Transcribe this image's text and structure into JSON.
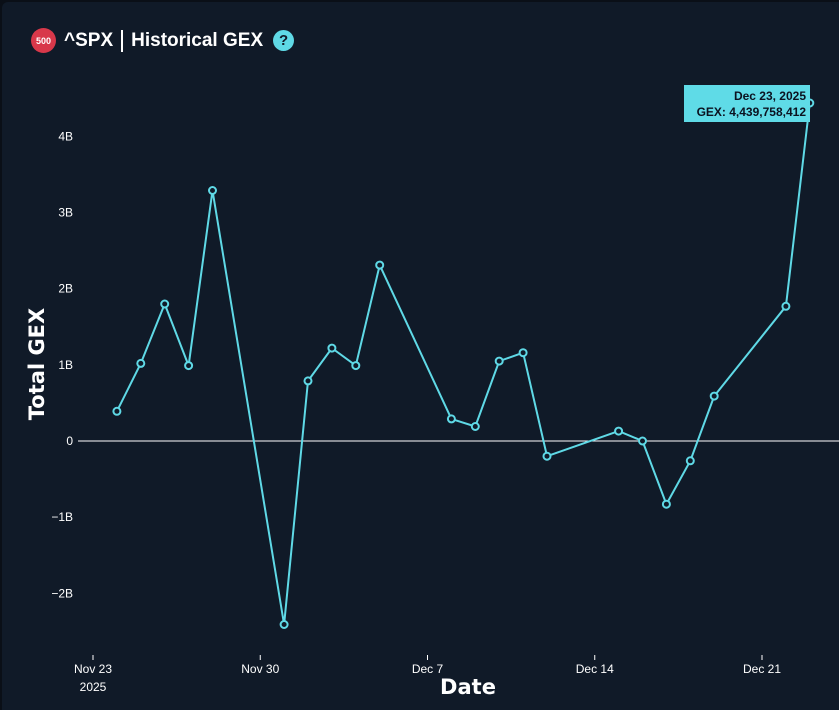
{
  "header": {
    "badge": "500",
    "ticker": "^SPX",
    "title": "Historical GEX",
    "help_icon": "question-icon"
  },
  "tooltip": {
    "date": "Dec 23, 2025",
    "value": "GEX: 4,439,758,412"
  },
  "colors": {
    "background": "#101a28",
    "line": "#5fd9e6",
    "zero_line": "#ffffff",
    "badge": "#d8384a"
  },
  "chart_data": {
    "type": "line",
    "title": "^SPX | Historical GEX",
    "xlabel": "Date",
    "ylabel": "Total GEX",
    "ylim": [
      -2.6,
      4.7
    ],
    "xlim": [
      "2025-11-23",
      "2025-12-24"
    ],
    "x_ticks": [
      {
        "date": "2025-11-23",
        "label": "Nov 23",
        "sublabel": "2025"
      },
      {
        "date": "2025-11-30",
        "label": "Nov 30"
      },
      {
        "date": "2025-12-07",
        "label": "Dec 7"
      },
      {
        "date": "2025-12-14",
        "label": "Dec 14"
      },
      {
        "date": "2025-12-21",
        "label": "Dec 21"
      }
    ],
    "y_ticks": [
      {
        "value": 4,
        "label": "4B"
      },
      {
        "value": 3,
        "label": "3B"
      },
      {
        "value": 2,
        "label": "2B"
      },
      {
        "value": 1,
        "label": "1B"
      },
      {
        "value": 0,
        "label": "0"
      },
      {
        "value": -1,
        "label": "−1B"
      },
      {
        "value": -2,
        "label": "−2B"
      }
    ],
    "grid": false,
    "series": [
      {
        "x": [
          "2025-11-24",
          "2025-11-25",
          "2025-11-26",
          "2025-11-27",
          "2025-11-28",
          "2025-12-01",
          "2025-12-02",
          "2025-12-03",
          "2025-12-04",
          "2025-12-05",
          "2025-12-08",
          "2025-12-09",
          "2025-12-10",
          "2025-12-11",
          "2025-12-12",
          "2025-12-15",
          "2025-12-16",
          "2025-12-17",
          "2025-12-18",
          "2025-12-19",
          "2025-12-22",
          "2025-12-23"
        ],
        "y": [
          0.39,
          1.02,
          1.8,
          0.99,
          3.29,
          -2.41,
          0.79,
          1.22,
          0.99,
          2.31,
          0.29,
          0.19,
          1.05,
          1.16,
          -0.2,
          0.13,
          0.0,
          -0.83,
          -0.26,
          0.59,
          1.77,
          4.44
        ]
      }
    ]
  }
}
